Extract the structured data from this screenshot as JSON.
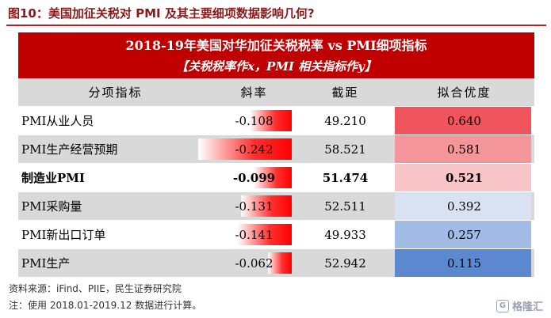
{
  "figure_title": "图10：美国加征关税对 PMI 及其主要细项数据影响几何?",
  "banner": {
    "line1": "2018-19年美国对华加征关税税率 vs PMI细项指标",
    "line2": "【关税税率作x，PMI 相关指标作y】"
  },
  "headers": {
    "name": "分项指标",
    "slope": "斜率",
    "intercept": "截距",
    "fit": "拟合优度"
  },
  "rows": [
    {
      "name": "PMI从业人员",
      "slope": "-0.108",
      "slope_value": -0.108,
      "intercept": "49.210",
      "fit": "0.640",
      "fit_value": 0.64,
      "fit_color": "#f0545c",
      "bold": false
    },
    {
      "name": "PMI生产经营预期",
      "slope": "-0.242",
      "slope_value": -0.242,
      "intercept": "58.521",
      "fit": "0.581",
      "fit_value": 0.581,
      "fit_color": "#f4959a",
      "bold": false
    },
    {
      "name": "制造业PMI",
      "slope": "-0.099",
      "slope_value": -0.099,
      "intercept": "51.474",
      "fit": "0.521",
      "fit_value": 0.521,
      "fit_color": "#f8c5c8",
      "bold": true
    },
    {
      "name": "PMI采购量",
      "slope": "-0.131",
      "slope_value": -0.131,
      "intercept": "52.511",
      "fit": "0.392",
      "fit_value": 0.392,
      "fit_color": "#d8e2f3",
      "bold": false
    },
    {
      "name": "PMI新出口订单",
      "slope": "-0.141",
      "slope_value": -0.141,
      "intercept": "49.933",
      "fit": "0.257",
      "fit_value": 0.257,
      "fit_color": "#a2bde5",
      "bold": false
    },
    {
      "name": "PMI生产",
      "slope": "-0.062",
      "slope_value": -0.062,
      "intercept": "52.942",
      "fit": "0.115",
      "fit_value": 0.115,
      "fit_color": "#5b88cf",
      "bold": false
    }
  ],
  "source": "资料来源：iFind、PIIE，民生证券研究院",
  "note": "注：使用 2018.01-2019.12 数据进行计算。",
  "watermark": "格隆汇",
  "watermark_icon": "G"
}
